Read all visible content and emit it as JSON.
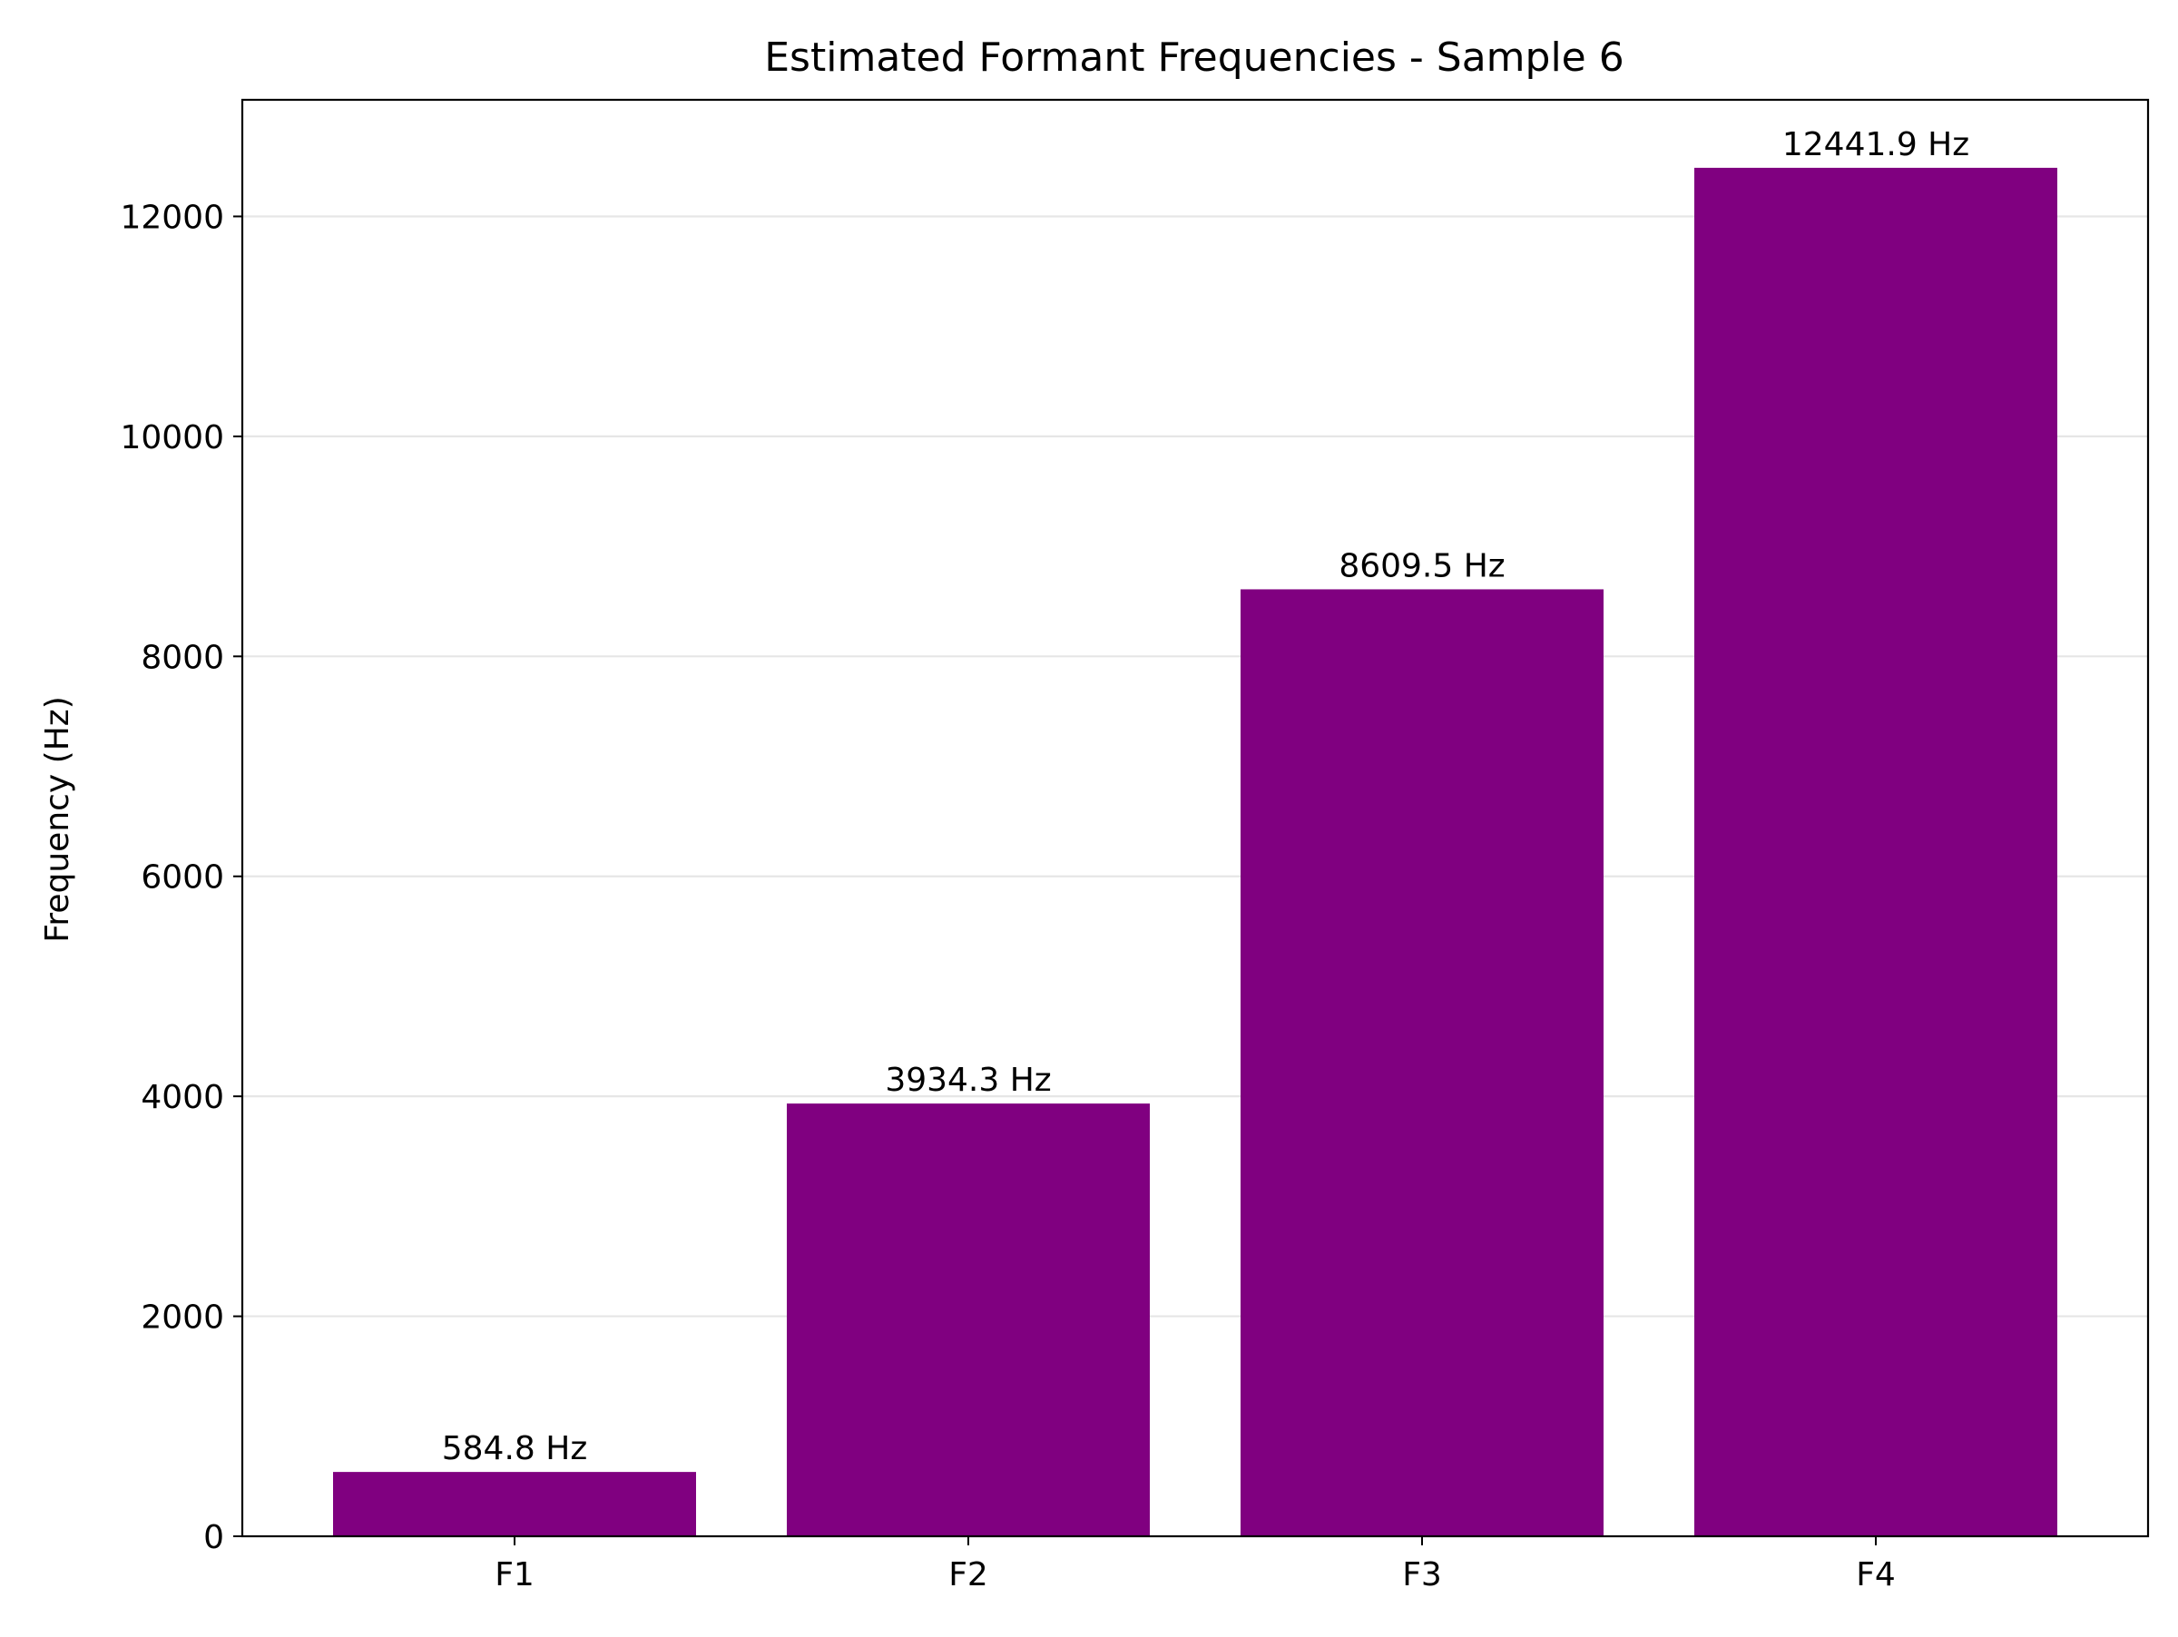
{
  "chart_data": {
    "type": "bar",
    "title": "Estimated Formant Frequencies - Sample 6",
    "xlabel": "",
    "ylabel": "Frequency (Hz)",
    "categories": [
      "F1",
      "F2",
      "F3",
      "F4"
    ],
    "values": [
      584.8,
      3934.3,
      8609.5,
      12441.9
    ],
    "data_labels": [
      "584.8 Hz",
      "3934.3 Hz",
      "8609.5 Hz",
      "12441.9 Hz"
    ],
    "ylim": [
      0,
      13060
    ],
    "yticks": [
      0,
      2000,
      4000,
      6000,
      8000,
      10000,
      12000
    ],
    "grid": "y-axis, light gray",
    "legend": "none",
    "bar_color": "#800080"
  }
}
